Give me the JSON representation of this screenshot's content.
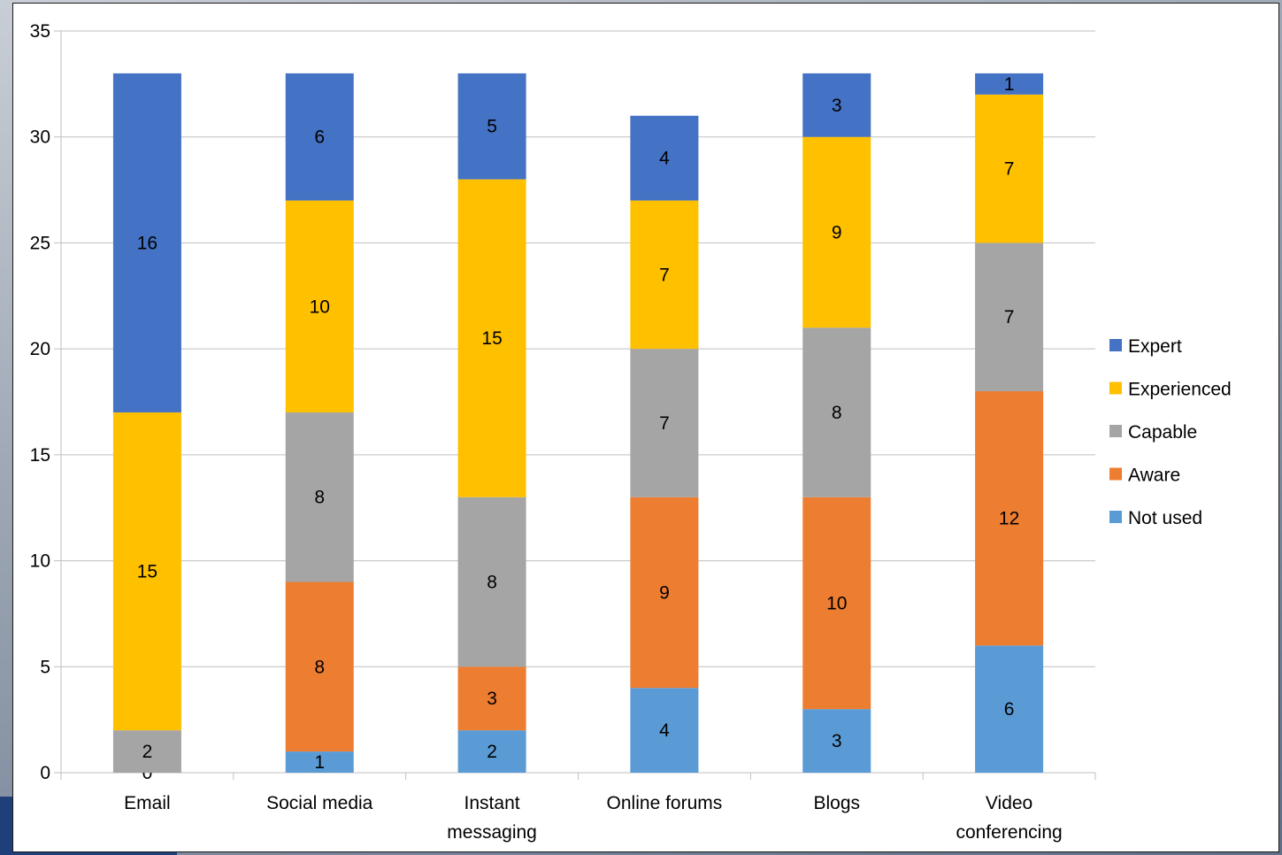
{
  "chart_data": {
    "type": "bar",
    "stacked": true,
    "title": "",
    "xlabel": "",
    "ylabel": "",
    "ylim": [
      0,
      35
    ],
    "yticks": [
      0,
      5,
      10,
      15,
      20,
      25,
      30,
      35
    ],
    "grid": true,
    "legend_position": "right",
    "categories": [
      [
        "Email"
      ],
      [
        "Social media"
      ],
      [
        "Instant",
        "messaging"
      ],
      [
        "Online forums"
      ],
      [
        "Blogs"
      ],
      [
        "Video",
        "conferencing"
      ]
    ],
    "series": [
      {
        "name": "Not used",
        "color": "#5b9bd5",
        "values": [
          0,
          1,
          2,
          4,
          3,
          6
        ]
      },
      {
        "name": "Aware",
        "color": "#ed7d31",
        "values": [
          0,
          8,
          3,
          9,
          10,
          12
        ]
      },
      {
        "name": "Capable",
        "color": "#a5a5a5",
        "values": [
          2,
          8,
          8,
          7,
          8,
          7
        ]
      },
      {
        "name": "Experienced",
        "color": "#ffc000",
        "values": [
          15,
          10,
          15,
          7,
          9,
          7
        ]
      },
      {
        "name": "Expert",
        "color": "#4472c4",
        "values": [
          16,
          6,
          5,
          4,
          3,
          1
        ]
      }
    ]
  }
}
